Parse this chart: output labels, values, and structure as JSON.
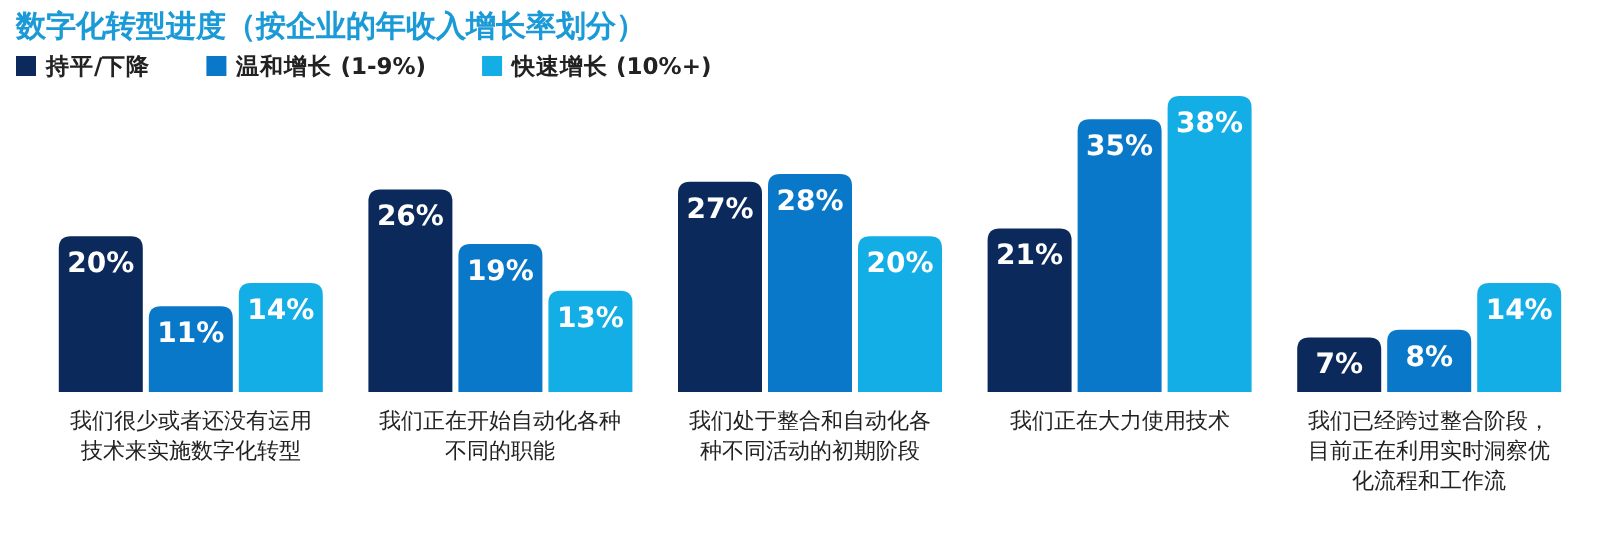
{
  "chart_data": {
    "type": "bar",
    "title": "数字化转型进度（按企业的年收入增长率划分）",
    "legend": "top left",
    "categories": [
      "我们很少或者还没有运用技术来实施数字化转型",
      "我们正在开始自动化各种不同的职能",
      "我们处于整合和自动化各种不同活动的初期阶段",
      "我们正在大力使用技术",
      "我们已经跨过整合阶段，目前正在利用实时洞察优化流程和工作流"
    ],
    "series": [
      {
        "name": "持平/下降",
        "color": "#0b2a5b",
        "values": [
          20,
          26,
          27,
          21,
          7
        ],
        "value_labels": [
          "20%",
          "26%",
          "27%",
          "21%",
          "7%"
        ]
      },
      {
        "name": "温和增长 (1-9%)",
        "color": "#0a78c8",
        "values": [
          11,
          19,
          28,
          35,
          8
        ],
        "value_labels": [
          "11%",
          "19%",
          "28%",
          "35%",
          "8%"
        ]
      },
      {
        "name": "快速增长 (10%+)",
        "color": "#14aee6",
        "values": [
          14,
          13,
          20,
          38,
          14
        ],
        "value_labels": [
          "14%",
          "13%",
          "20%",
          "38%",
          "14%"
        ]
      }
    ]
  }
}
